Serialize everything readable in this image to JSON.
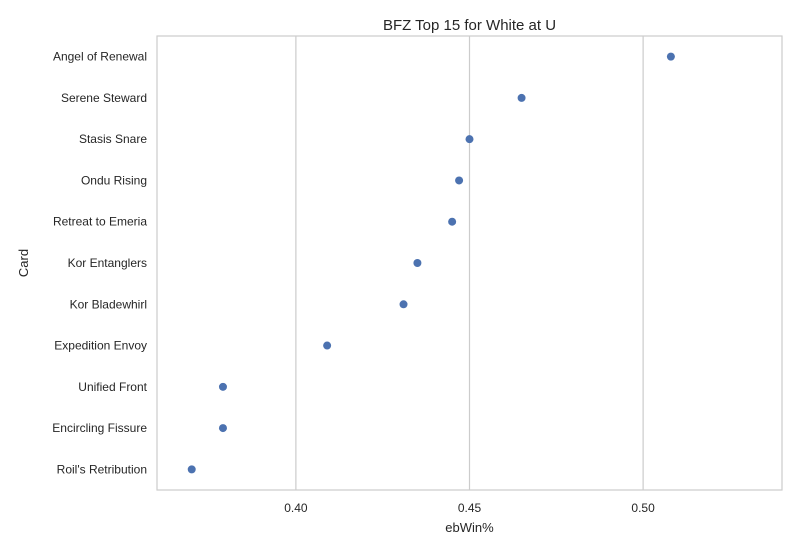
{
  "chart_data": {
    "type": "scatter",
    "title": "BFZ Top 15 for White at U",
    "xlabel": "ebWin%",
    "ylabel": "Card",
    "xlim": [
      0.36,
      0.54
    ],
    "xticks": [
      0.4,
      0.45,
      0.5
    ],
    "xtick_labels": [
      "0.40",
      "0.45",
      "0.50"
    ],
    "grid": "vertical",
    "point_color": "#4c72b0",
    "categories": [
      "Angel of Renewal",
      "Serene Steward",
      "Stasis Snare",
      "Ondu Rising",
      "Retreat to Emeria",
      "Kor Entanglers",
      "Kor Bladewhirl",
      "Expedition Envoy",
      "Unified Front",
      "Encircling Fissure",
      "Roil's Retribution"
    ],
    "values": [
      0.508,
      0.465,
      0.45,
      0.447,
      0.445,
      0.435,
      0.431,
      0.409,
      0.379,
      0.379,
      0.37
    ]
  }
}
